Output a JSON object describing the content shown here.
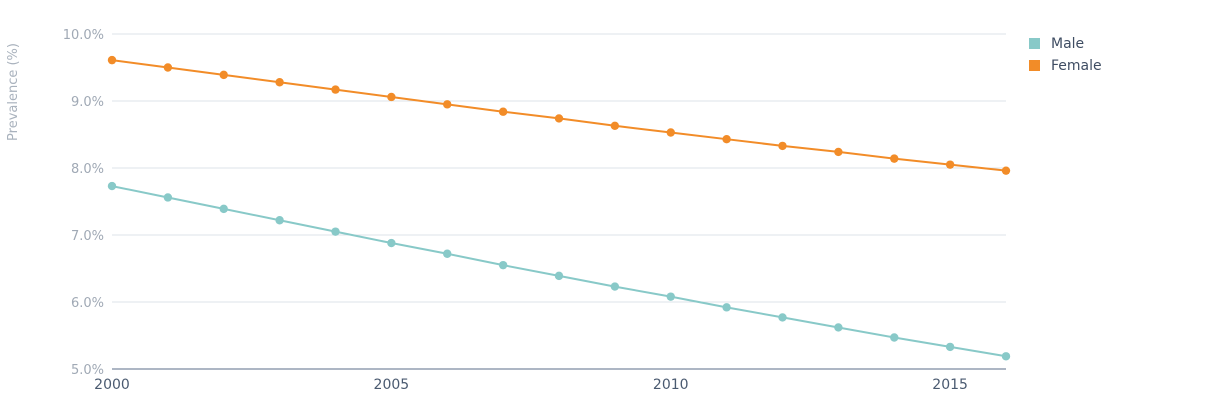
{
  "chart_data": {
    "type": "line",
    "title": "",
    "xlabel": "",
    "ylabel": "Prevalence (%)",
    "x": [
      2000,
      2001,
      2002,
      2003,
      2004,
      2005,
      2006,
      2007,
      2008,
      2009,
      2010,
      2011,
      2012,
      2013,
      2014,
      2015,
      2016
    ],
    "xlim": [
      2000,
      2016
    ],
    "ylim": [
      5.0,
      10.0
    ],
    "x_ticks": [
      2000,
      2005,
      2010,
      2015
    ],
    "x_tick_labels": [
      "2000",
      "2005",
      "2010",
      "2015"
    ],
    "y_ticks": [
      5.0,
      6.0,
      7.0,
      8.0,
      9.0,
      10.0
    ],
    "y_tick_labels": [
      "5.0%",
      "6.0%",
      "7.0%",
      "8.0%",
      "9.0%",
      "10.0%"
    ],
    "grid": true,
    "legend_position": "top-right",
    "series": [
      {
        "name": "Male",
        "color": "#88c9c8",
        "values": [
          7.73,
          7.56,
          7.39,
          7.22,
          7.05,
          6.88,
          6.72,
          6.55,
          6.39,
          6.23,
          6.08,
          5.92,
          5.77,
          5.62,
          5.47,
          5.33,
          5.19
        ]
      },
      {
        "name": "Female",
        "color": "#f28c28",
        "values": [
          9.61,
          9.5,
          9.39,
          9.28,
          9.17,
          9.06,
          8.95,
          8.84,
          8.74,
          8.63,
          8.53,
          8.43,
          8.33,
          8.24,
          8.14,
          8.05,
          7.96
        ]
      }
    ]
  }
}
